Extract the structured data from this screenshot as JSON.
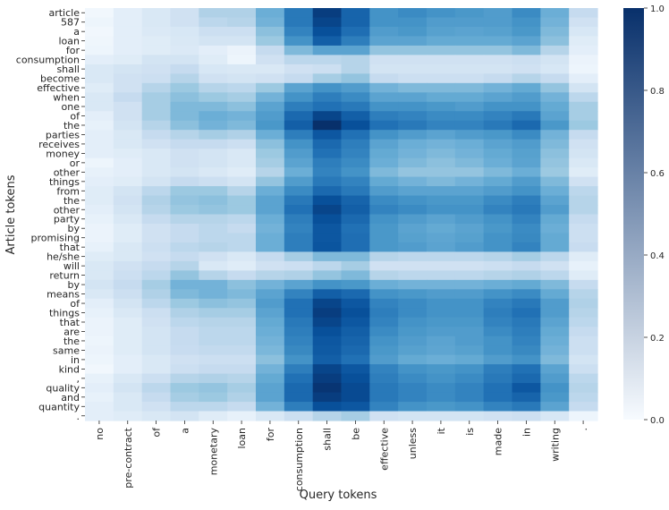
{
  "chart_data": {
    "type": "heatmap",
    "title": "",
    "xlabel": "Query tokens",
    "ylabel": "Article tokens",
    "colormap": "Blues",
    "colors": {
      "low": "#f7fbff",
      "high": "#08306b",
      "text": "#262626"
    },
    "x_categories": [
      "no",
      "pre-contract",
      "of",
      "a",
      "monetary",
      "loan",
      "for",
      "consumption",
      "shall",
      "be",
      "effective",
      "unless",
      "it",
      "is",
      "made",
      "in",
      "writing",
      "."
    ],
    "y_categories": [
      "article",
      "587",
      "a",
      "loan",
      "for",
      "consumption",
      "shall",
      "become",
      "effective",
      "when",
      "one",
      "of",
      "the",
      "parties",
      "receives",
      "money",
      "or",
      "other",
      "things",
      "from",
      "the",
      "other",
      "party",
      "by",
      "promising",
      "that",
      "he/she",
      "will",
      "return",
      "by",
      "means",
      "of",
      "things",
      "that",
      "are",
      "the",
      "same",
      "in",
      "kind",
      ",",
      "quality",
      "and",
      "quantity",
      "."
    ],
    "colorbar": {
      "min": 0.0,
      "max": 1.0,
      "ticks": [
        "0.0",
        "0.2",
        "0.4",
        "0.6",
        "0.8",
        "1.0"
      ],
      "tick_values": [
        0.0,
        0.2,
        0.4,
        0.6,
        0.8,
        1.0
      ]
    },
    "values": [
      [
        0.03,
        0.1,
        0.15,
        0.2,
        0.32,
        0.32,
        0.5,
        0.72,
        0.95,
        0.8,
        0.62,
        0.65,
        0.62,
        0.6,
        0.58,
        0.65,
        0.5,
        0.25
      ],
      [
        0.05,
        0.1,
        0.15,
        0.2,
        0.28,
        0.3,
        0.48,
        0.72,
        0.92,
        0.8,
        0.62,
        0.62,
        0.58,
        0.58,
        0.58,
        0.62,
        0.48,
        0.2
      ],
      [
        0.03,
        0.1,
        0.14,
        0.16,
        0.22,
        0.22,
        0.42,
        0.68,
        0.88,
        0.76,
        0.58,
        0.6,
        0.56,
        0.55,
        0.56,
        0.6,
        0.45,
        0.16
      ],
      [
        0.04,
        0.1,
        0.12,
        0.15,
        0.18,
        0.18,
        0.38,
        0.62,
        0.82,
        0.7,
        0.55,
        0.55,
        0.52,
        0.52,
        0.52,
        0.55,
        0.42,
        0.12
      ],
      [
        0.05,
        0.1,
        0.12,
        0.14,
        0.1,
        0.06,
        0.25,
        0.45,
        0.55,
        0.55,
        0.4,
        0.4,
        0.4,
        0.4,
        0.4,
        0.45,
        0.3,
        0.1
      ],
      [
        0.1,
        0.12,
        0.18,
        0.18,
        0.12,
        0.05,
        0.2,
        0.28,
        0.28,
        0.3,
        0.2,
        0.2,
        0.2,
        0.2,
        0.2,
        0.22,
        0.18,
        0.06
      ],
      [
        0.15,
        0.18,
        0.2,
        0.25,
        0.16,
        0.15,
        0.15,
        0.2,
        0.22,
        0.3,
        0.18,
        0.18,
        0.18,
        0.18,
        0.18,
        0.2,
        0.16,
        0.05
      ],
      [
        0.15,
        0.2,
        0.22,
        0.3,
        0.2,
        0.18,
        0.2,
        0.25,
        0.35,
        0.4,
        0.25,
        0.22,
        0.22,
        0.22,
        0.25,
        0.3,
        0.25,
        0.1
      ],
      [
        0.12,
        0.2,
        0.3,
        0.38,
        0.3,
        0.28,
        0.38,
        0.55,
        0.62,
        0.58,
        0.48,
        0.45,
        0.45,
        0.45,
        0.48,
        0.52,
        0.4,
        0.18
      ],
      [
        0.15,
        0.25,
        0.35,
        0.42,
        0.38,
        0.35,
        0.48,
        0.62,
        0.7,
        0.65,
        0.55,
        0.55,
        0.52,
        0.52,
        0.55,
        0.58,
        0.48,
        0.28
      ],
      [
        0.15,
        0.2,
        0.35,
        0.45,
        0.45,
        0.42,
        0.55,
        0.7,
        0.75,
        0.72,
        0.62,
        0.62,
        0.6,
        0.58,
        0.62,
        0.62,
        0.52,
        0.35
      ],
      [
        0.1,
        0.2,
        0.35,
        0.45,
        0.5,
        0.48,
        0.58,
        0.78,
        0.92,
        0.82,
        0.7,
        0.68,
        0.65,
        0.65,
        0.68,
        0.72,
        0.55,
        0.35
      ],
      [
        0.08,
        0.18,
        0.3,
        0.42,
        0.48,
        0.45,
        0.6,
        0.82,
        1.0,
        0.88,
        0.75,
        0.72,
        0.68,
        0.68,
        0.72,
        0.78,
        0.6,
        0.38
      ],
      [
        0.1,
        0.15,
        0.25,
        0.3,
        0.35,
        0.32,
        0.5,
        0.7,
        0.85,
        0.75,
        0.62,
        0.58,
        0.55,
        0.58,
        0.6,
        0.65,
        0.48,
        0.25
      ],
      [
        0.1,
        0.15,
        0.2,
        0.25,
        0.25,
        0.22,
        0.42,
        0.62,
        0.78,
        0.7,
        0.55,
        0.5,
        0.48,
        0.5,
        0.55,
        0.58,
        0.45,
        0.2
      ],
      [
        0.1,
        0.12,
        0.15,
        0.2,
        0.18,
        0.15,
        0.38,
        0.58,
        0.75,
        0.68,
        0.52,
        0.48,
        0.45,
        0.48,
        0.52,
        0.56,
        0.42,
        0.18
      ],
      [
        0.05,
        0.1,
        0.15,
        0.2,
        0.18,
        0.15,
        0.35,
        0.55,
        0.7,
        0.65,
        0.5,
        0.45,
        0.42,
        0.45,
        0.5,
        0.55,
        0.4,
        0.15
      ],
      [
        0.08,
        0.1,
        0.15,
        0.18,
        0.15,
        0.12,
        0.3,
        0.5,
        0.68,
        0.62,
        0.45,
        0.4,
        0.4,
        0.4,
        0.45,
        0.5,
        0.38,
        0.12
      ],
      [
        0.1,
        0.12,
        0.18,
        0.25,
        0.22,
        0.18,
        0.4,
        0.58,
        0.72,
        0.68,
        0.52,
        0.48,
        0.45,
        0.48,
        0.52,
        0.58,
        0.45,
        0.2
      ],
      [
        0.12,
        0.18,
        0.28,
        0.38,
        0.38,
        0.3,
        0.5,
        0.65,
        0.78,
        0.72,
        0.58,
        0.55,
        0.55,
        0.55,
        0.58,
        0.62,
        0.5,
        0.28
      ],
      [
        0.12,
        0.2,
        0.32,
        0.4,
        0.42,
        0.38,
        0.55,
        0.72,
        0.88,
        0.8,
        0.65,
        0.62,
        0.6,
        0.6,
        0.65,
        0.7,
        0.55,
        0.3
      ],
      [
        0.1,
        0.18,
        0.3,
        0.38,
        0.4,
        0.38,
        0.55,
        0.75,
        0.92,
        0.82,
        0.68,
        0.65,
        0.62,
        0.62,
        0.68,
        0.72,
        0.58,
        0.3
      ],
      [
        0.08,
        0.15,
        0.25,
        0.3,
        0.3,
        0.28,
        0.5,
        0.7,
        0.88,
        0.78,
        0.62,
        0.58,
        0.55,
        0.58,
        0.62,
        0.68,
        0.52,
        0.25
      ],
      [
        0.06,
        0.12,
        0.2,
        0.25,
        0.28,
        0.25,
        0.48,
        0.68,
        0.85,
        0.75,
        0.6,
        0.55,
        0.52,
        0.55,
        0.6,
        0.65,
        0.5,
        0.22
      ],
      [
        0.06,
        0.12,
        0.2,
        0.25,
        0.28,
        0.28,
        0.5,
        0.7,
        0.85,
        0.76,
        0.6,
        0.56,
        0.54,
        0.56,
        0.62,
        0.66,
        0.52,
        0.22
      ],
      [
        0.08,
        0.15,
        0.22,
        0.28,
        0.3,
        0.28,
        0.5,
        0.7,
        0.86,
        0.76,
        0.6,
        0.58,
        0.55,
        0.58,
        0.62,
        0.68,
        0.52,
        0.24
      ],
      [
        0.12,
        0.15,
        0.2,
        0.25,
        0.2,
        0.15,
        0.25,
        0.35,
        0.45,
        0.45,
        0.3,
        0.28,
        0.28,
        0.28,
        0.3,
        0.35,
        0.28,
        0.12
      ],
      [
        0.15,
        0.2,
        0.25,
        0.3,
        0.15,
        0.12,
        0.2,
        0.22,
        0.28,
        0.35,
        0.2,
        0.2,
        0.2,
        0.2,
        0.22,
        0.25,
        0.2,
        0.08
      ],
      [
        0.15,
        0.22,
        0.28,
        0.4,
        0.3,
        0.25,
        0.3,
        0.32,
        0.4,
        0.45,
        0.3,
        0.28,
        0.28,
        0.28,
        0.3,
        0.32,
        0.28,
        0.12
      ],
      [
        0.18,
        0.25,
        0.35,
        0.48,
        0.48,
        0.42,
        0.48,
        0.55,
        0.62,
        0.6,
        0.5,
        0.48,
        0.48,
        0.48,
        0.5,
        0.52,
        0.45,
        0.25
      ],
      [
        0.15,
        0.22,
        0.32,
        0.45,
        0.48,
        0.45,
        0.55,
        0.68,
        0.82,
        0.78,
        0.62,
        0.6,
        0.58,
        0.58,
        0.62,
        0.65,
        0.52,
        0.3
      ],
      [
        0.1,
        0.18,
        0.28,
        0.38,
        0.42,
        0.4,
        0.58,
        0.75,
        0.92,
        0.85,
        0.68,
        0.65,
        0.62,
        0.62,
        0.68,
        0.72,
        0.58,
        0.32
      ],
      [
        0.08,
        0.15,
        0.22,
        0.32,
        0.35,
        0.35,
        0.55,
        0.75,
        0.95,
        0.88,
        0.7,
        0.65,
        0.62,
        0.62,
        0.7,
        0.75,
        0.58,
        0.3
      ],
      [
        0.06,
        0.12,
        0.2,
        0.28,
        0.3,
        0.3,
        0.52,
        0.72,
        0.92,
        0.85,
        0.68,
        0.62,
        0.6,
        0.6,
        0.68,
        0.72,
        0.55,
        0.28
      ],
      [
        0.06,
        0.12,
        0.18,
        0.25,
        0.28,
        0.28,
        0.5,
        0.7,
        0.88,
        0.82,
        0.65,
        0.6,
        0.58,
        0.58,
        0.65,
        0.7,
        0.52,
        0.25
      ],
      [
        0.05,
        0.12,
        0.18,
        0.25,
        0.28,
        0.28,
        0.48,
        0.68,
        0.85,
        0.8,
        0.62,
        0.58,
        0.55,
        0.58,
        0.62,
        0.68,
        0.5,
        0.22
      ],
      [
        0.06,
        0.12,
        0.18,
        0.24,
        0.26,
        0.26,
        0.46,
        0.66,
        0.84,
        0.78,
        0.6,
        0.56,
        0.54,
        0.56,
        0.62,
        0.66,
        0.48,
        0.22
      ],
      [
        0.05,
        0.1,
        0.15,
        0.2,
        0.22,
        0.22,
        0.42,
        0.62,
        0.82,
        0.75,
        0.58,
        0.52,
        0.5,
        0.52,
        0.58,
        0.62,
        0.45,
        0.18
      ],
      [
        0.03,
        0.1,
        0.15,
        0.22,
        0.25,
        0.25,
        0.48,
        0.7,
        0.92,
        0.85,
        0.68,
        0.62,
        0.6,
        0.62,
        0.7,
        0.75,
        0.55,
        0.22
      ],
      [
        0.08,
        0.15,
        0.22,
        0.3,
        0.32,
        0.3,
        0.52,
        0.75,
        0.95,
        0.88,
        0.7,
        0.65,
        0.62,
        0.65,
        0.72,
        0.78,
        0.58,
        0.28
      ],
      [
        0.1,
        0.18,
        0.28,
        0.38,
        0.4,
        0.35,
        0.55,
        0.78,
        0.98,
        0.9,
        0.72,
        0.68,
        0.65,
        0.68,
        0.75,
        0.85,
        0.62,
        0.3
      ],
      [
        0.08,
        0.15,
        0.25,
        0.35,
        0.38,
        0.32,
        0.55,
        0.78,
        0.95,
        0.9,
        0.72,
        0.68,
        0.65,
        0.68,
        0.75,
        0.8,
        0.6,
        0.28
      ],
      [
        0.1,
        0.15,
        0.2,
        0.28,
        0.28,
        0.25,
        0.48,
        0.7,
        0.88,
        0.85,
        0.68,
        0.62,
        0.6,
        0.62,
        0.68,
        0.72,
        0.55,
        0.25
      ],
      [
        0.1,
        0.12,
        0.15,
        0.18,
        0.12,
        0.08,
        0.15,
        0.22,
        0.3,
        0.35,
        0.2,
        0.18,
        0.18,
        0.18,
        0.2,
        0.22,
        0.16,
        0.05
      ]
    ]
  }
}
